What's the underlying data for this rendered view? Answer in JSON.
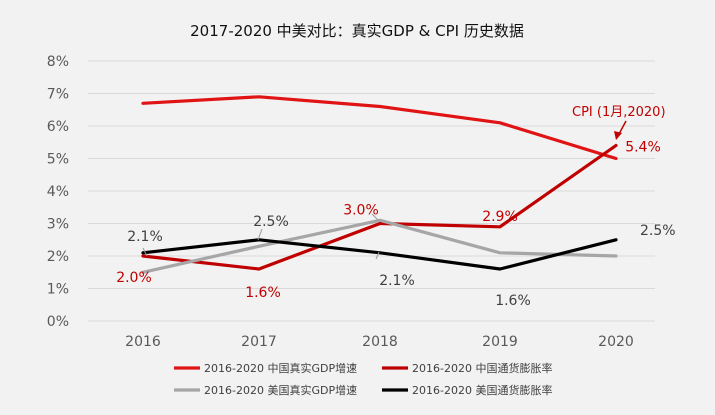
{
  "chart_data": {
    "type": "line",
    "title": "2017-2020  中美对比：真实GDP & CPI 历史数据",
    "categories": [
      "2016",
      "2017",
      "2018",
      "2019",
      "2020"
    ],
    "ylim": [
      0,
      8
    ],
    "yticks": [
      "0%",
      "1%",
      "2%",
      "3%",
      "4%",
      "5%",
      "6%",
      "7%",
      "8%"
    ],
    "xlabel": "",
    "ylabel": "",
    "grid": true,
    "legend_position": "bottom",
    "series": [
      {
        "name": "2016-2020 中国真实GDP增速",
        "color": "#e01414",
        "values": [
          6.7,
          6.9,
          6.6,
          6.1,
          5.0
        ]
      },
      {
        "name": "2016-2020 中国通货膨胀率",
        "color": "#c00000",
        "values": [
          2.0,
          1.6,
          3.0,
          2.9,
          5.4
        ]
      },
      {
        "name": "2016-2020 美国真实GDP增速",
        "color": "#a6a6a6",
        "values": [
          1.5,
          2.3,
          3.1,
          2.1,
          2.0
        ]
      },
      {
        "name": "2016-2020 美国通货膨胀率",
        "color": "#000000",
        "values": [
          2.1,
          2.5,
          2.1,
          1.6,
          2.5
        ]
      }
    ],
    "data_labels": [
      {
        "series": 1,
        "index": 0,
        "text": "2.0%",
        "color": "#c00000"
      },
      {
        "series": 1,
        "index": 1,
        "text": "1.6%",
        "color": "#c00000"
      },
      {
        "series": 1,
        "index": 2,
        "text": "3.0%",
        "color": "#c00000"
      },
      {
        "series": 1,
        "index": 3,
        "text": "2.9%",
        "color": "#c00000"
      },
      {
        "series": 1,
        "index": 4,
        "text": "5.4%",
        "color": "#c00000"
      },
      {
        "series": 3,
        "index": 0,
        "text": "2.1%",
        "color": "#404040"
      },
      {
        "series": 3,
        "index": 1,
        "text": "2.5%",
        "color": "#404040"
      },
      {
        "series": 3,
        "index": 2,
        "text": "2.1%",
        "color": "#404040"
      },
      {
        "series": 3,
        "index": 3,
        "text": "1.6%",
        "color": "#404040"
      },
      {
        "series": 3,
        "index": 4,
        "text": "2.5%",
        "color": "#404040"
      }
    ],
    "annotation": {
      "text": "CPI (1月,2020)",
      "color": "#c00000"
    }
  }
}
